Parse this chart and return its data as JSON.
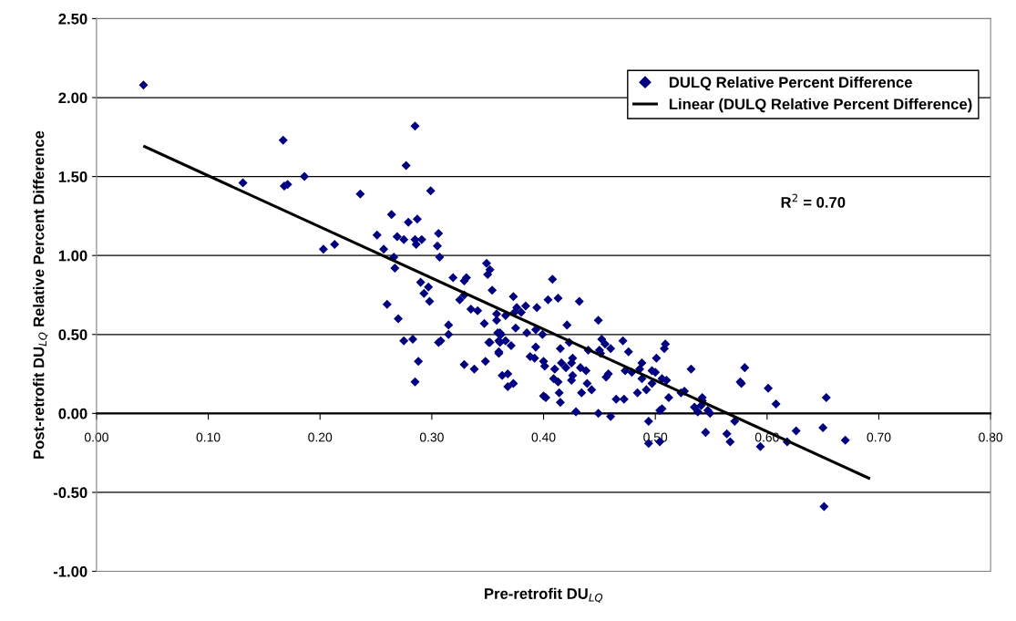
{
  "chart_data": {
    "type": "scatter",
    "xlabel": "Pre-retrofit DU$_{LQ}$",
    "ylabel": "Post-retrofit DU$_{LQ}$ Relative Percent Difference",
    "annotations": [
      "R$^{2}$ = 0.70"
    ],
    "xlim": [
      0,
      0.8
    ],
    "ylim": [
      -1,
      2.5
    ],
    "xticks": [
      {
        "value": 0,
        "label": "0.00"
      },
      {
        "value": 0.1,
        "label": "0.10"
      },
      {
        "value": 0.2,
        "label": "0.20"
      },
      {
        "value": 0.3,
        "label": "0.30"
      },
      {
        "value": 0.4,
        "label": "0.40"
      },
      {
        "value": 0.5,
        "label": "0.50"
      },
      {
        "value": 0.6,
        "label": "0.60"
      },
      {
        "value": 0.7,
        "label": "0.70"
      },
      {
        "value": 0.8,
        "label": "0.80"
      }
    ],
    "yticks": [
      {
        "value": -1,
        "label": "-1.00"
      },
      {
        "value": -0.5,
        "label": "-0.50"
      },
      {
        "value": 0,
        "label": "0.00"
      },
      {
        "value": 0.5,
        "label": "0.50"
      },
      {
        "value": 1,
        "label": "1.00"
      },
      {
        "value": 1.5,
        "label": "1.50"
      },
      {
        "value": 2,
        "label": "2.00"
      },
      {
        "value": 2.5,
        "label": "2.50"
      }
    ],
    "grid": "y",
    "legend": "top right",
    "series": [
      {
        "name": "DULQ Relative Percent Difference",
        "type": "scatter",
        "marker": "diamond",
        "color": "#000080",
        "x": [
          0.042,
          0.131,
          0.167,
          0.168,
          0.171,
          0.186,
          0.236,
          0.203,
          0.213,
          0.285,
          0.277,
          0.299,
          0.264,
          0.279,
          0.287,
          0.251,
          0.269,
          0.275,
          0.285,
          0.291,
          0.286,
          0.257,
          0.266,
          0.267,
          0.29,
          0.297,
          0.293,
          0.298,
          0.26,
          0.27,
          0.275,
          0.283,
          0.288,
          0.285,
          0.306,
          0.305,
          0.307,
          0.319,
          0.329,
          0.331,
          0.329,
          0.325,
          0.335,
          0.341,
          0.349,
          0.352,
          0.35,
          0.354,
          0.347,
          0.358,
          0.358,
          0.315,
          0.315,
          0.306,
          0.308,
          0.329,
          0.338,
          0.348,
          0.351,
          0.36,
          0.359,
          0.36,
          0.361,
          0.362,
          0.361,
          0.366,
          0.352,
          0.371,
          0.36,
          0.363,
          0.368,
          0.368,
          0.373,
          0.373,
          0.366,
          0.374,
          0.376,
          0.38,
          0.384,
          0.394,
          0.375,
          0.385,
          0.393,
          0.399,
          0.393,
          0.388,
          0.392,
          0.4,
          0.401,
          0.4,
          0.402,
          0.408,
          0.404,
          0.413,
          0.432,
          0.421,
          0.423,
          0.415,
          0.41,
          0.416,
          0.42,
          0.425,
          0.426,
          0.409,
          0.413,
          0.425,
          0.426,
          0.414,
          0.415,
          0.429,
          0.433,
          0.438,
          0.44,
          0.439,
          0.434,
          0.449,
          0.452,
          0.455,
          0.46,
          0.45,
          0.451,
          0.471,
          0.476,
          0.458,
          0.456,
          0.473,
          0.479,
          0.486,
          0.488,
          0.443,
          0.465,
          0.472,
          0.484,
          0.492,
          0.488,
          0.449,
          0.46,
          0.501,
          0.508,
          0.509,
          0.497,
          0.5,
          0.497,
          0.506,
          0.51,
          0.512,
          0.506,
          0.504,
          0.494,
          0.494,
          0.504,
          0.532,
          0.523,
          0.526,
          0.535,
          0.538,
          0.542,
          0.542,
          0.541,
          0.547,
          0.549,
          0.545,
          0.564,
          0.567,
          0.571,
          0.58,
          0.576,
          0.577,
          0.594,
          0.601,
          0.608,
          0.618,
          0.626,
          0.65,
          0.653,
          0.651,
          0.67
        ],
        "values": [
          2.08,
          1.46,
          1.73,
          1.44,
          1.45,
          1.5,
          1.39,
          1.04,
          1.07,
          1.82,
          1.57,
          1.41,
          1.26,
          1.21,
          1.23,
          1.13,
          1.12,
          1.1,
          1.1,
          1.1,
          1.07,
          1.04,
          0.99,
          0.92,
          0.83,
          0.8,
          0.76,
          0.71,
          0.69,
          0.6,
          0.46,
          0.47,
          0.33,
          0.2,
          1.14,
          1.06,
          0.99,
          0.86,
          0.84,
          0.86,
          0.75,
          0.72,
          0.66,
          0.65,
          0.95,
          0.91,
          0.88,
          0.78,
          0.57,
          0.63,
          0.59,
          0.56,
          0.5,
          0.45,
          0.46,
          0.31,
          0.28,
          0.33,
          0.45,
          0.46,
          0.51,
          0.39,
          0.51,
          0.5,
          0.45,
          0.46,
          0.45,
          0.43,
          0.38,
          0.24,
          0.25,
          0.17,
          0.19,
          0.74,
          0.62,
          0.64,
          0.67,
          0.64,
          0.68,
          0.67,
          0.54,
          0.51,
          0.53,
          0.5,
          0.42,
          0.36,
          0.35,
          0.33,
          0.3,
          0.11,
          0.1,
          0.85,
          0.72,
          0.73,
          0.71,
          0.56,
          0.45,
          0.41,
          0.28,
          0.32,
          0.29,
          0.32,
          0.35,
          0.22,
          0.2,
          0.21,
          0.24,
          0.13,
          0.07,
          0.01,
          0.29,
          0.27,
          0.4,
          0.19,
          0.13,
          0.59,
          0.47,
          0.44,
          0.41,
          0.4,
          0.38,
          0.46,
          0.39,
          0.25,
          0.23,
          0.27,
          0.26,
          0.28,
          0.32,
          0.15,
          0.09,
          0.09,
          0.13,
          0.15,
          0.22,
          0.0,
          -0.02,
          0.35,
          0.41,
          0.44,
          0.27,
          0.26,
          0.19,
          0.22,
          0.21,
          0.1,
          0.03,
          0.02,
          -0.05,
          -0.19,
          -0.18,
          0.28,
          0.13,
          0.14,
          0.04,
          0.01,
          0.1,
          0.08,
          0.05,
          0.02,
          0.0,
          -0.12,
          -0.13,
          -0.18,
          -0.05,
          0.29,
          0.2,
          0.19,
          -0.21,
          0.16,
          0.06,
          -0.18,
          -0.11,
          -0.09,
          0.1,
          -0.59,
          -0.17
        ]
      },
      {
        "name": "Linear (DULQ Relative Percent Difference)",
        "type": "line",
        "line_style": "solid",
        "color": "#000000",
        "x": [
          0.043,
          0.691
        ],
        "values": [
          1.69,
          -0.41
        ]
      }
    ]
  }
}
